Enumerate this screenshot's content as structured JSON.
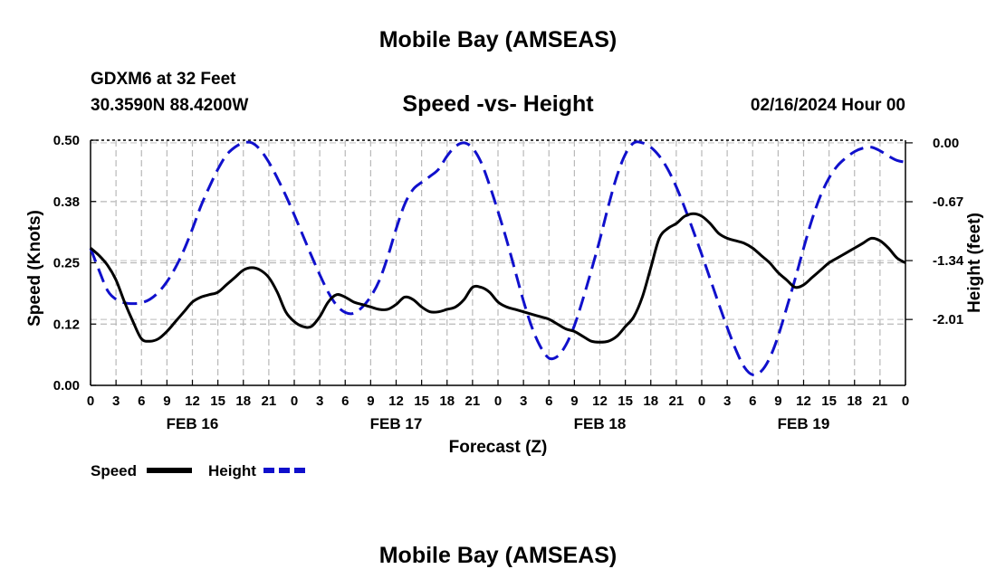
{
  "title": "Mobile Bay (AMSEAS)",
  "footer_title": "Mobile Bay (AMSEAS)",
  "station_label": "GDXM6 at 32 Feet",
  "coordinates": "30.3590N  88.4200W",
  "subtitle": "Speed -vs- Height",
  "run_time": "02/16/2024 Hour 00",
  "chart_data": {
    "type": "line",
    "title": "Speed -vs- Height",
    "xlabel": "Forecast (Z)",
    "ylabel": "Speed (Knots)",
    "y2label": "Height (feet)",
    "x_unit": "hours since 02/16/2024 00Z",
    "xlim": [
      0,
      96
    ],
    "ylim": [
      0,
      0.5
    ],
    "y2lim": [
      -2.76,
      0.03
    ],
    "x_ticks": [
      0,
      3,
      6,
      9,
      12,
      15,
      18,
      21,
      24,
      27,
      30,
      33,
      36,
      39,
      42,
      45,
      48,
      51,
      54,
      57,
      60,
      63,
      66,
      69,
      72,
      75,
      78,
      81,
      84,
      87,
      90,
      93,
      96
    ],
    "x_tick_labels": [
      "0",
      "3",
      "6",
      "9",
      "12",
      "15",
      "18",
      "21",
      "0",
      "3",
      "6",
      "9",
      "12",
      "15",
      "18",
      "21",
      "0",
      "3",
      "6",
      "9",
      "12",
      "15",
      "18",
      "21",
      "0",
      "3",
      "6",
      "9",
      "12",
      "15",
      "18",
      "21",
      "0"
    ],
    "day_labels": [
      {
        "label": "FEB 16",
        "x": 12
      },
      {
        "label": "FEB 17",
        "x": 36
      },
      {
        "label": "FEB 18",
        "x": 60
      },
      {
        "label": "FEB 19",
        "x": 84
      }
    ],
    "y_ticks": [
      0.0,
      0.125,
      0.25,
      0.375,
      0.5
    ],
    "y_tick_labels": [
      "0.00",
      "0.12",
      "0.25",
      "0.38",
      "0.50"
    ],
    "y2_ticks": [
      0.0,
      -0.67,
      -1.34,
      -2.01
    ],
    "y2_tick_labels": [
      "0.00",
      "-0.67",
      "-1.34",
      "-2.01"
    ],
    "grid": true,
    "legend": [
      {
        "label": "Speed",
        "color": "#000000",
        "style": "solid"
      },
      {
        "label": "Height",
        "color": "#1010cc",
        "style": "dashed"
      }
    ],
    "series": [
      {
        "name": "Speed",
        "axis": "left",
        "color": "#000000",
        "style": "solid",
        "x": [
          0,
          1,
          2,
          3,
          4,
          5,
          6,
          7,
          8,
          9,
          10,
          11,
          12,
          13,
          14,
          15,
          16,
          17,
          18,
          19,
          20,
          21,
          22,
          23,
          24,
          25,
          26,
          27,
          28,
          29,
          30,
          31,
          32,
          33,
          34,
          35,
          36,
          37,
          38,
          39,
          40,
          41,
          42,
          43,
          44,
          45,
          46,
          47,
          48,
          49,
          50,
          51,
          52,
          53,
          54,
          55,
          56,
          57,
          58,
          59,
          60,
          61,
          62,
          63,
          64,
          65,
          66,
          67,
          68,
          69,
          70,
          71,
          72,
          73,
          74,
          75,
          76,
          77,
          78,
          79,
          80,
          81,
          82,
          83,
          84,
          85,
          86,
          87,
          88,
          89,
          90,
          91,
          92,
          93,
          94,
          95,
          96
        ],
        "y": [
          0.28,
          0.265,
          0.245,
          0.215,
          0.17,
          0.13,
          0.095,
          0.09,
          0.095,
          0.11,
          0.13,
          0.15,
          0.17,
          0.18,
          0.185,
          0.19,
          0.205,
          0.22,
          0.235,
          0.24,
          0.235,
          0.22,
          0.19,
          0.15,
          0.13,
          0.12,
          0.12,
          0.14,
          0.17,
          0.185,
          0.18,
          0.17,
          0.165,
          0.16,
          0.155,
          0.155,
          0.165,
          0.18,
          0.175,
          0.16,
          0.15,
          0.15,
          0.155,
          0.16,
          0.175,
          0.2,
          0.2,
          0.19,
          0.17,
          0.16,
          0.155,
          0.15,
          0.145,
          0.14,
          0.135,
          0.125,
          0.115,
          0.11,
          0.1,
          0.09,
          0.088,
          0.09,
          0.1,
          0.12,
          0.14,
          0.18,
          0.24,
          0.3,
          0.32,
          0.33,
          0.345,
          0.35,
          0.345,
          0.33,
          0.31,
          0.3,
          0.295,
          0.29,
          0.28,
          0.265,
          0.25,
          0.23,
          0.215,
          0.2,
          0.205,
          0.22,
          0.235,
          0.25,
          0.26,
          0.27,
          0.28,
          0.29,
          0.3,
          0.295,
          0.28,
          0.26,
          0.25
        ]
      },
      {
        "name": "Height",
        "axis": "right",
        "color": "#1010cc",
        "style": "dashed",
        "x": [
          0,
          1,
          2,
          3,
          4,
          5,
          6,
          7,
          8,
          9,
          10,
          11,
          12,
          13,
          14,
          15,
          16,
          17,
          18,
          19,
          20,
          21,
          22,
          23,
          24,
          25,
          26,
          27,
          28,
          29,
          30,
          31,
          32,
          33,
          34,
          35,
          36,
          37,
          38,
          39,
          40,
          41,
          42,
          43,
          44,
          45,
          46,
          47,
          48,
          49,
          50,
          51,
          52,
          53,
          54,
          55,
          56,
          57,
          58,
          59,
          60,
          61,
          62,
          63,
          64,
          65,
          66,
          67,
          68,
          69,
          70,
          71,
          72,
          73,
          74,
          75,
          76,
          77,
          78,
          79,
          80,
          81,
          82,
          83,
          84,
          85,
          86,
          87,
          88,
          89,
          90,
          91,
          92,
          93,
          94,
          95,
          96
        ],
        "y": [
          -1.2,
          -1.45,
          -1.68,
          -1.78,
          -1.82,
          -1.83,
          -1.82,
          -1.78,
          -1.7,
          -1.58,
          -1.42,
          -1.22,
          -0.98,
          -0.72,
          -0.5,
          -0.3,
          -0.14,
          -0.05,
          0.0,
          0.0,
          -0.08,
          -0.22,
          -0.4,
          -0.6,
          -0.82,
          -1.05,
          -1.28,
          -1.5,
          -1.7,
          -1.85,
          -1.93,
          -1.94,
          -1.87,
          -1.75,
          -1.57,
          -1.3,
          -0.98,
          -0.7,
          -0.53,
          -0.45,
          -0.38,
          -0.3,
          -0.15,
          -0.04,
          0.0,
          -0.06,
          -0.22,
          -0.48,
          -0.78,
          -1.1,
          -1.45,
          -1.8,
          -2.1,
          -2.32,
          -2.45,
          -2.43,
          -2.3,
          -2.08,
          -1.78,
          -1.45,
          -1.1,
          -0.72,
          -0.38,
          -0.13,
          0.0,
          0.0,
          -0.05,
          -0.15,
          -0.3,
          -0.5,
          -0.74,
          -1.0,
          -1.27,
          -1.55,
          -1.83,
          -2.1,
          -2.35,
          -2.55,
          -2.64,
          -2.6,
          -2.45,
          -2.2,
          -1.88,
          -1.55,
          -1.2,
          -0.87,
          -0.6,
          -0.4,
          -0.26,
          -0.17,
          -0.1,
          -0.06,
          -0.05,
          -0.09,
          -0.15,
          -0.2,
          -0.22
        ]
      }
    ]
  }
}
